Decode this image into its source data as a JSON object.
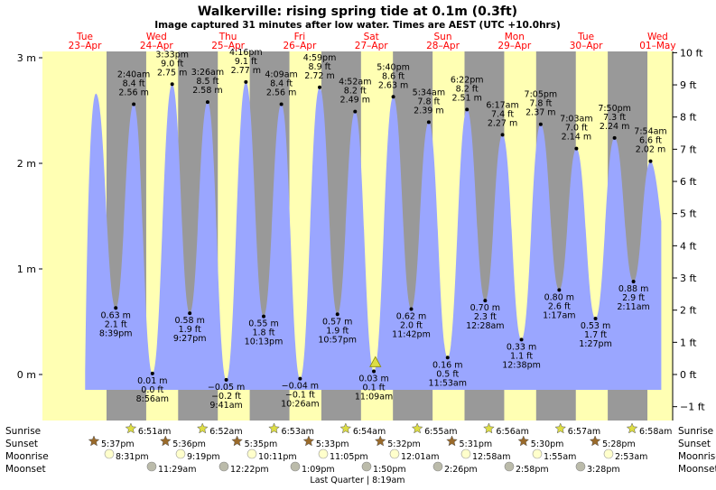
{
  "title": "Walkerville: rising  spring tide at 0.1m (0.3ft)",
  "subtitle": "Image captured 31 minutes after low water. Times are AEST (UTC +10.0hrs)",
  "colors": {
    "day_bg": "#ffffb3",
    "night_bg": "#999999",
    "tide_fill": "#9aa6ff",
    "day_label": "#ff0000",
    "sun_star": "#dddd44",
    "sunset_star": "#9a6a2a",
    "moonrise": "#ffffcc",
    "moonset": "#bbbbaa"
  },
  "days": [
    {
      "dow": "Tue",
      "date": "23–Apr"
    },
    {
      "dow": "Wed",
      "date": "24–Apr"
    },
    {
      "dow": "Thu",
      "date": "25–Apr"
    },
    {
      "dow": "Fri",
      "date": "26–Apr"
    },
    {
      "dow": "Sat",
      "date": "27–Apr"
    },
    {
      "dow": "Sun",
      "date": "28–Apr"
    },
    {
      "dow": "Mon",
      "date": "29–Apr"
    },
    {
      "dow": "Tue",
      "date": "30–Apr"
    },
    {
      "dow": "Wed",
      "date": "01–May"
    }
  ],
  "row_labels": {
    "sunrise": "Sunrise",
    "sunset": "Sunset",
    "moonrise": "Moonrise",
    "moonset": "Moonset"
  },
  "astro": {
    "sunrise": [
      "6:51am",
      "6:52am",
      "6:53am",
      "6:54am",
      "6:55am",
      "6:56am",
      "6:57am",
      "6:58am"
    ],
    "sunset": [
      "5:37pm",
      "5:36pm",
      "5:35pm",
      "5:33pm",
      "5:32pm",
      "5:31pm",
      "5:30pm",
      "5:28pm"
    ],
    "moonrise": [
      "8:31pm",
      "9:19pm",
      "10:11pm",
      "11:05pm",
      "12:01am",
      "12:58am",
      "1:55am",
      "2:53am"
    ],
    "moonset": [
      "11:29am",
      "12:22pm",
      "1:09pm",
      "1:50pm",
      "2:26pm",
      "2:58pm",
      "3:28pm"
    ]
  },
  "moon_phase": "Last Quarter | 8:19am",
  "chart_data": {
    "type": "area",
    "title": "Walkerville: rising  spring tide at 0.1m (0.3ft)",
    "y_left_unit": "m",
    "y_right_unit": "ft",
    "ylim_m": [
      -0.35,
      3.08
    ],
    "y_left_ticks": [
      "0 m",
      "1 m",
      "2 m",
      "3 m"
    ],
    "y_right_ticks": [
      "−1 ft",
      "0 ft",
      "1 ft",
      "2 ft",
      "3 ft",
      "4 ft",
      "5 ft",
      "6 ft",
      "7 ft",
      "8 ft",
      "9 ft",
      "10 ft"
    ],
    "x_range": [
      "2024-04-23 12:00",
      "2024-05-01 12:00"
    ],
    "initial_high": {
      "time": "2024-04-23 14:00",
      "m": 2.66
    },
    "final_end": {
      "time": "2024-05-01 11:30",
      "m": 1.45
    },
    "extremes": [
      {
        "type": "low",
        "time": "8:39pm",
        "m": "0.63 m",
        "ft": "2.1 ft",
        "value": 0.63,
        "at": "2024-04-23 20:39"
      },
      {
        "type": "high",
        "time": "2:40am",
        "m": "2.56 m",
        "ft": "8.4 ft",
        "value": 2.56,
        "at": "2024-04-24 02:40"
      },
      {
        "type": "low",
        "time": "8:56am",
        "m": "0.01 m",
        "ft": "0.0 ft",
        "value": 0.01,
        "at": "2024-04-24 08:56"
      },
      {
        "type": "high",
        "time": "3:33pm",
        "m": "2.75 m",
        "ft": "9.0 ft",
        "value": 2.75,
        "at": "2024-04-24 15:33"
      },
      {
        "type": "low",
        "time": "9:27pm",
        "m": "0.58 m",
        "ft": "1.9 ft",
        "value": 0.58,
        "at": "2024-04-24 21:27"
      },
      {
        "type": "high",
        "time": "3:26am",
        "m": "2.58 m",
        "ft": "8.5 ft",
        "value": 2.58,
        "at": "2024-04-25 03:26"
      },
      {
        "type": "low",
        "time": "9:41am",
        "m": "−0.05 m",
        "ft": "−0.2 ft",
        "value": -0.05,
        "at": "2024-04-25 09:41"
      },
      {
        "type": "high",
        "time": "4:16pm",
        "m": "2.77 m",
        "ft": "9.1 ft",
        "value": 2.77,
        "at": "2024-04-25 16:16"
      },
      {
        "type": "low",
        "time": "10:13pm",
        "m": "0.55 m",
        "ft": "1.8 ft",
        "value": 0.55,
        "at": "2024-04-25 22:13"
      },
      {
        "type": "high",
        "time": "4:09am",
        "m": "2.56 m",
        "ft": "8.4 ft",
        "value": 2.56,
        "at": "2024-04-26 04:09"
      },
      {
        "type": "low",
        "time": "10:26am",
        "m": "−0.04 m",
        "ft": "−0.1 ft",
        "value": -0.04,
        "at": "2024-04-26 10:26"
      },
      {
        "type": "high",
        "time": "4:59pm",
        "m": "2.72 m",
        "ft": "8.9 ft",
        "value": 2.72,
        "at": "2024-04-26 16:59"
      },
      {
        "type": "low",
        "time": "10:57pm",
        "m": "0.57 m",
        "ft": "1.9 ft",
        "value": 0.57,
        "at": "2024-04-26 22:57"
      },
      {
        "type": "high",
        "time": "4:52am",
        "m": "2.49 m",
        "ft": "8.2 ft",
        "value": 2.49,
        "at": "2024-04-27 04:52"
      },
      {
        "type": "low",
        "time": "11:09am",
        "m": "0.03 m",
        "ft": "0.1 ft",
        "value": 0.03,
        "at": "2024-04-27 11:09"
      },
      {
        "type": "high",
        "time": "5:40pm",
        "m": "2.63 m",
        "ft": "8.6 ft",
        "value": 2.63,
        "at": "2024-04-27 17:40"
      },
      {
        "type": "low",
        "time": "11:42pm",
        "m": "0.62 m",
        "ft": "2.0 ft",
        "value": 0.62,
        "at": "2024-04-27 23:42"
      },
      {
        "type": "high",
        "time": "5:34am",
        "m": "2.39 m",
        "ft": "7.8 ft",
        "value": 2.39,
        "at": "2024-04-28 05:34"
      },
      {
        "type": "low",
        "time": "11:53am",
        "m": "0.16 m",
        "ft": "0.5 ft",
        "value": 0.16,
        "at": "2024-04-28 11:53"
      },
      {
        "type": "high",
        "time": "6:22pm",
        "m": "2.51 m",
        "ft": "8.2 ft",
        "value": 2.51,
        "at": "2024-04-28 18:22"
      },
      {
        "type": "low",
        "time": "12:28am",
        "m": "0.70 m",
        "ft": "2.3 ft",
        "value": 0.7,
        "at": "2024-04-29 00:28"
      },
      {
        "type": "high",
        "time": "6:17am",
        "m": "2.27 m",
        "ft": "7.4 ft",
        "value": 2.27,
        "at": "2024-04-29 06:17"
      },
      {
        "type": "low",
        "time": "12:38pm",
        "m": "0.33 m",
        "ft": "1.1 ft",
        "value": 0.33,
        "at": "2024-04-29 12:38"
      },
      {
        "type": "high",
        "time": "7:05pm",
        "m": "2.37 m",
        "ft": "7.8 ft",
        "value": 2.37,
        "at": "2024-04-29 19:05"
      },
      {
        "type": "low",
        "time": "1:17am",
        "m": "0.80 m",
        "ft": "2.6 ft",
        "value": 0.8,
        "at": "2024-04-30 01:17"
      },
      {
        "type": "high",
        "time": "7:03am",
        "m": "2.14 m",
        "ft": "7.0 ft",
        "value": 2.14,
        "at": "2024-04-30 07:03"
      },
      {
        "type": "low",
        "time": "1:27pm",
        "m": "0.53 m",
        "ft": "1.7 ft",
        "value": 0.53,
        "at": "2024-04-30 13:27"
      },
      {
        "type": "high",
        "time": "7:50pm",
        "m": "2.24 m",
        "ft": "7.3 ft",
        "value": 2.24,
        "at": "2024-04-30 19:50"
      },
      {
        "type": "low",
        "time": "2:11am",
        "m": "0.88 m",
        "ft": "2.9 ft",
        "value": 0.88,
        "at": "2024-05-01 02:11"
      },
      {
        "type": "high",
        "time": "7:54am",
        "m": "2.02 m",
        "ft": "6.6 ft",
        "value": 2.02,
        "at": "2024-05-01 07:54"
      }
    ],
    "current_marker": {
      "time": "2024-04-27 11:40",
      "m": 0.1
    }
  }
}
